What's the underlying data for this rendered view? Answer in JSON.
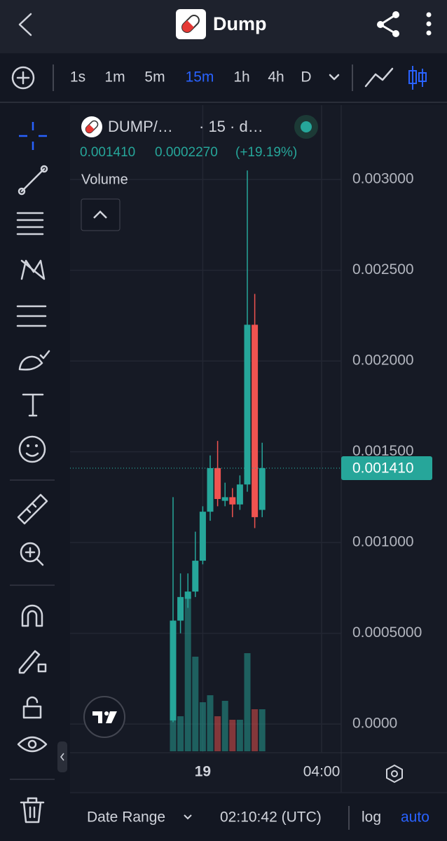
{
  "header": {
    "title": "Dump"
  },
  "timeframes": {
    "items": [
      "1s",
      "1m",
      "5m",
      "15m",
      "1h",
      "4h",
      "D"
    ],
    "active": 3
  },
  "legend": {
    "symbol": "DUMP/…",
    "interval": "· 15 · d…",
    "close": "0.001410",
    "change": "0.0002270",
    "change_pct": "(+19.19%)",
    "volume_label": "Volume"
  },
  "chart_data": {
    "type": "candlestick",
    "open": [
      2e-05,
      0.00057,
      0.00069,
      0.00073,
      0.0009,
      0.00117,
      0.00141,
      0.00123,
      0.00125,
      0.00121,
      0.00132,
      0.0022,
      0.00118
    ],
    "high": [
      0.00125,
      0.00083,
      0.00083,
      0.00106,
      0.0012,
      0.00148,
      0.00156,
      0.00133,
      0.0013,
      0.00137,
      0.00305,
      0.00237,
      0.00155
    ],
    "low": [
      1e-05,
      0.0005,
      0.00064,
      0.0007,
      0.00088,
      0.00112,
      0.0012,
      0.0012,
      0.00114,
      0.00118,
      0.00128,
      0.00108,
      0.00114
    ],
    "close": [
      0.00057,
      0.0007,
      0.00073,
      0.0009,
      0.00117,
      0.00141,
      0.00124,
      0.00125,
      0.00121,
      0.00132,
      0.0022,
      0.00114,
      0.00141
    ],
    "volume": [
      64,
      50,
      220,
      135,
      70,
      80,
      50,
      72,
      45,
      45,
      140,
      60,
      60
    ],
    "up_color": "#26a69a",
    "down_color": "#ef5350",
    "ylim": [
      -0.00015,
      0.00341
    ],
    "yticks": [
      {
        "value": 0,
        "label": "0.0000"
      },
      {
        "value": 0.0005,
        "label": "0.0005000"
      },
      {
        "value": 0.001,
        "label": "0.001000"
      },
      {
        "value": 0.0015,
        "label": "0.001500"
      },
      {
        "value": 0.002,
        "label": "0.002000"
      },
      {
        "value": 0.0025,
        "label": "0.002500"
      },
      {
        "value": 0.003,
        "label": "0.003000"
      }
    ],
    "x_ticks": [
      {
        "index": 4,
        "label": "19"
      },
      {
        "index": 20,
        "label": "04:00"
      }
    ],
    "last_price": {
      "value": 0.00141,
      "label": "0.001410"
    },
    "grid": true
  },
  "footer": {
    "date_range": "Date Range",
    "time": "02:10:42 (UTC)",
    "log": "log",
    "auto": "auto"
  }
}
